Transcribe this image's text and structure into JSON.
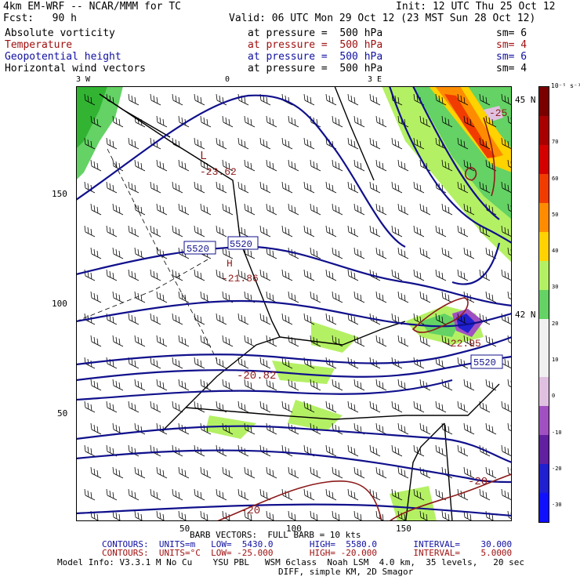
{
  "header": {
    "model": "4km EM-WRF -- NCAR/MMM for TC",
    "init": "Init: 12 UTC Thu 25 Oct 12",
    "fcst": "Fcst:   90 h",
    "valid": "Valid: 06 UTC Mon 29 Oct 12 (23 MST Sun 28 Oct 12)"
  },
  "fields": [
    {
      "name": "Absolute vorticity",
      "pressure": "at pressure =  500 hPa",
      "sm": "sm= 6",
      "color": "#000000"
    },
    {
      "name": "Temperature",
      "pressure": "at pressure =  500 hPa",
      "sm": "sm= 4",
      "color": "#a01010"
    },
    {
      "name": "Geopotential height",
      "pressure": "at pressure =  500 hPa",
      "sm": "sm= 6",
      "color": "#1010a0"
    },
    {
      "name": "Horizontal wind vectors",
      "pressure": "at pressure =  500 hPa",
      "sm": "sm= 4",
      "color": "#000000"
    }
  ],
  "map": {
    "top_ticks": [
      "3 W",
      "0",
      "3 E"
    ],
    "right_lat": [
      "45 N",
      "42 N"
    ],
    "y_ticks": [
      "150",
      "100",
      "50"
    ],
    "x_ticks": [
      "50",
      "100",
      "150"
    ],
    "labels": {
      "low": "L",
      "low_value": "-23.62",
      "high": "H",
      "high_value": "-21.86",
      "temp_mid": "-20.82",
      "temp_right": "-22.95",
      "temp_bot1": "-20",
      "temp_bot2": "-20",
      "temp_top": "-25",
      "height_box1": "5520",
      "height_box2": "5520",
      "height_box3": "5520"
    },
    "colors": {
      "height": "#10108c",
      "temp": "#8c1a1a",
      "border": "#000000",
      "barb": "#000000"
    }
  },
  "colorbar": {
    "unit": "10⁻⁵ s⁻¹",
    "labels": [
      "70",
      "60",
      "50",
      "40",
      "30",
      "20",
      "10",
      "0",
      "-10",
      "-20",
      "-30"
    ],
    "colors": [
      "#7a0000",
      "#a80000",
      "#d40000",
      "#f03c00",
      "#ff8c00",
      "#ffd200",
      "#b4f064",
      "#64d264",
      "#f0f0f0",
      "#f0f0f0",
      "#e0c0e0",
      "#a050c0",
      "#6020a0",
      "#2020d0",
      "#1010ff"
    ]
  },
  "footer": {
    "barb": "BARB VECTORS:  FULL BARB = 10 kts",
    "contours1": "CONTOURS:  UNITS=m   LOW=  5430.0       HIGH=  5580.0       INTERVAL=    30.000",
    "contours2": "CONTOURS:  UNITS=°C  LOW= -25.000       HIGH= -20.000       INTERVAL=    5.0000",
    "model_info": "Model Info: V3.3.1 M No Cu    YSU PBL   WSM 6class  Noah LSM  4.0 km,  35 levels,   20 sec",
    "model_info2": "DIFF, simple KM, 2D Smagor"
  }
}
